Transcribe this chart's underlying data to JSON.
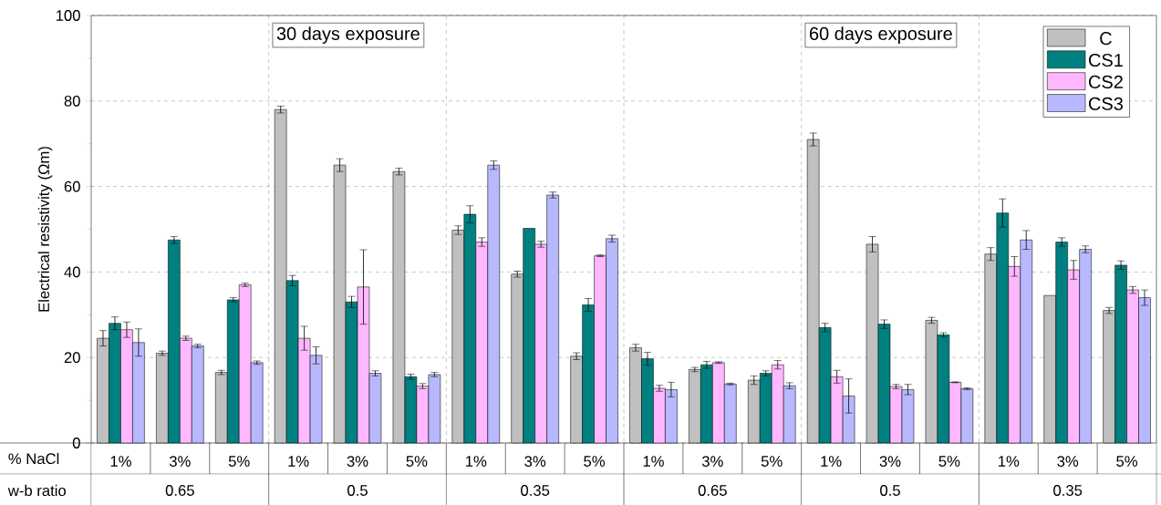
{
  "chart_data": {
    "type": "bar",
    "ylabel": "Electrical resistivity (Ωm)",
    "categories": [
      "1%",
      "3%",
      "5%",
      "1%",
      "3%",
      "5%",
      "1%",
      "3%",
      "5%",
      "1%",
      "3%",
      "5%",
      "1%",
      "3%",
      "5%",
      "1%",
      "3%",
      "5%"
    ],
    "series": [
      {
        "name": "C",
        "color": "#c0c0c0",
        "values": [
          24.5,
          21,
          16.5,
          78,
          65,
          63.5,
          49.8,
          39.5,
          20.3,
          22.3,
          17.2,
          14.7,
          71,
          46.5,
          28.7,
          44.2,
          34.5,
          31
        ],
        "errors": [
          1.8,
          0.5,
          0.5,
          0.8,
          1.5,
          0.8,
          1,
          0.7,
          0.8,
          0.8,
          0.5,
          1,
          1.5,
          1.8,
          0.7,
          1.5,
          null,
          0.7
        ]
      },
      {
        "name": "CS1",
        "color": "#008080",
        "values": [
          28,
          47.5,
          33.5,
          38,
          33,
          15.5,
          53.5,
          50.2,
          32.3,
          19.7,
          18.3,
          16.3,
          27,
          27.8,
          25.3,
          53.8,
          47,
          41.6
        ],
        "errors": [
          1.5,
          0.8,
          0.5,
          1.2,
          1.3,
          0.6,
          2,
          null,
          1.5,
          1.5,
          0.8,
          0.6,
          1,
          1,
          0.5,
          3.3,
          1,
          1
        ]
      },
      {
        "name": "CS2",
        "color": "#ffb8ff",
        "values": [
          26.5,
          24.5,
          37,
          24.5,
          36.5,
          13.3,
          47,
          46.5,
          43.8,
          12.8,
          18.8,
          18.3,
          15.5,
          13.2,
          14.2,
          41.3,
          40.5,
          35.8
        ],
        "errors": [
          1.8,
          0.5,
          0.4,
          2.8,
          8.7,
          0.6,
          1,
          0.7,
          0.2,
          0.7,
          0.2,
          1,
          1.5,
          0.5,
          0.1,
          2.3,
          2.2,
          0.8
        ]
      },
      {
        "name": "CS3",
        "color": "#b8b8ff",
        "values": [
          23.5,
          22.7,
          18.8,
          20.5,
          16.3,
          16,
          65,
          58,
          47.8,
          12.5,
          13.8,
          13.4,
          11,
          12.5,
          12.7,
          47.5,
          45.3,
          34
        ],
        "errors": [
          3.2,
          0.4,
          0.4,
          2,
          0.6,
          0.5,
          1,
          0.7,
          0.8,
          1.7,
          0.2,
          0.7,
          4,
          1.2,
          0.2,
          2.2,
          0.8,
          1.8
        ]
      }
    ],
    "ylim": [
      0,
      100
    ],
    "yticks": [
      0,
      20,
      40,
      60,
      80,
      100
    ],
    "grid": "y",
    "legend": "top right",
    "annotations": [
      "30 days exposure",
      "60 days exposure",
      "% NaCl",
      "w-b ratio",
      "0.65",
      "0.5",
      "0.35",
      "0.65",
      "0.5",
      "0.35"
    ]
  }
}
